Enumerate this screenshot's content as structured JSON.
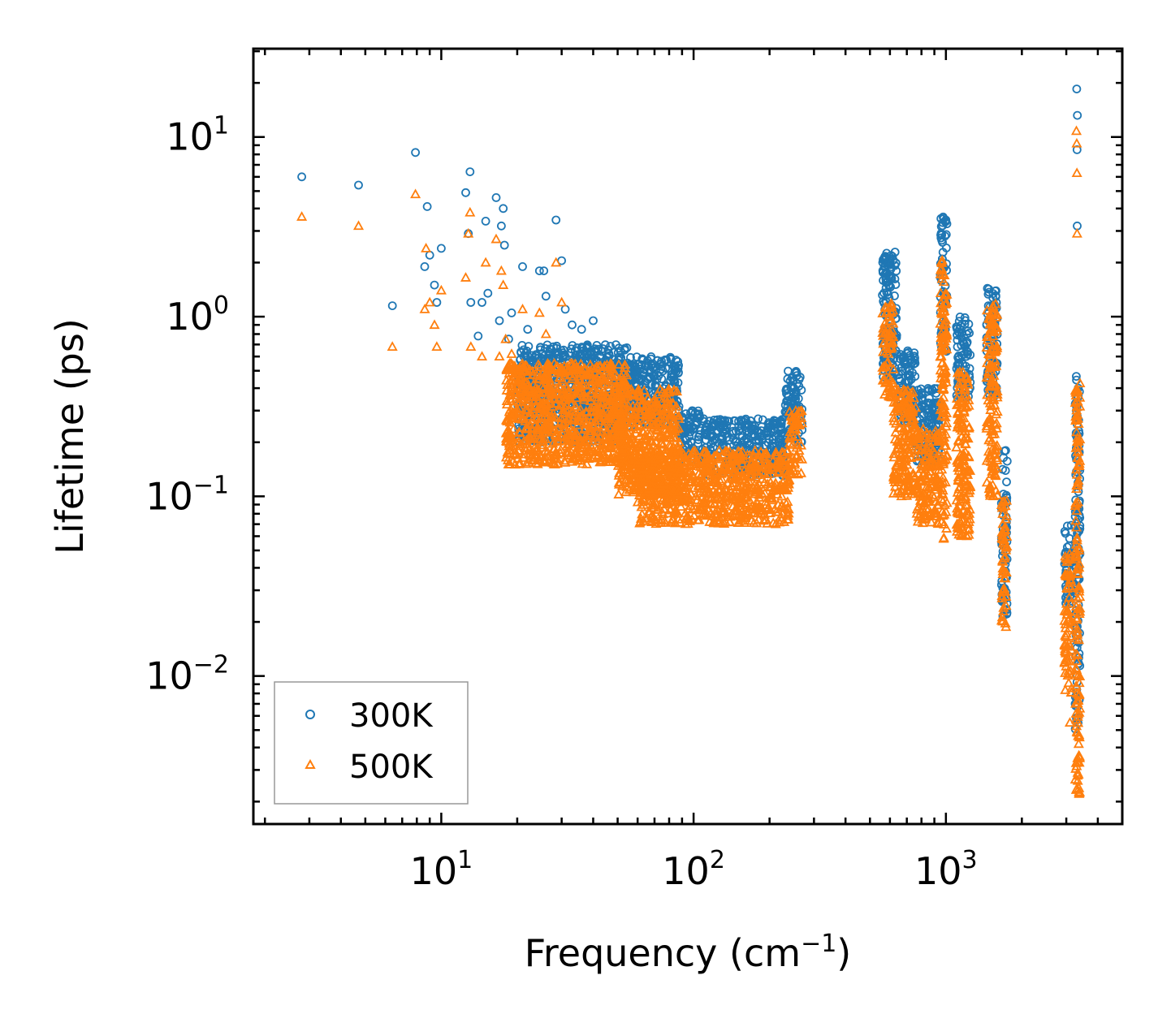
{
  "chart_data": {
    "type": "scatter",
    "title": "",
    "xlabel": "Frequency (cm",
    "xlabel_sup": "−1",
    "xlabel_suffix": ")",
    "ylabel": "Lifetime (ps)",
    "xscale": "log",
    "yscale": "log",
    "xlim": [
      1.8,
      5000
    ],
    "ylim": [
      0.0015,
      31
    ],
    "x_ticks": [
      {
        "value": 10,
        "base": "10",
        "exp": "1"
      },
      {
        "value": 100,
        "base": "10",
        "exp": "2"
      },
      {
        "value": 1000,
        "base": "10",
        "exp": "3"
      }
    ],
    "y_ticks": [
      {
        "value": 0.01,
        "base": "10",
        "exp": "−2"
      },
      {
        "value": 0.1,
        "base": "10",
        "exp": "−1"
      },
      {
        "value": 1,
        "base": "10",
        "exp": "0"
      },
      {
        "value": 10,
        "base": "10",
        "exp": "1"
      }
    ],
    "legend_position": "bottom-left",
    "series": [
      {
        "name": "300K",
        "color": "#1f77b4",
        "marker": "circle",
        "explicit_points": [
          [
            2.8,
            6.0
          ],
          [
            4.7,
            5.4
          ],
          [
            6.4,
            1.15
          ],
          [
            7.9,
            8.2
          ],
          [
            8.6,
            1.9
          ],
          [
            8.8,
            4.1
          ],
          [
            9.0,
            2.2
          ],
          [
            9.4,
            1.5
          ],
          [
            9.6,
            1.2
          ],
          [
            10.0,
            2.4
          ],
          [
            12.5,
            4.9
          ],
          [
            12.8,
            2.9
          ],
          [
            13.0,
            6.4
          ],
          [
            13.1,
            1.2
          ],
          [
            14.0,
            0.78
          ],
          [
            14.5,
            1.2
          ],
          [
            15.0,
            3.4
          ],
          [
            15.3,
            1.35
          ],
          [
            16.5,
            4.6
          ],
          [
            17.0,
            0.95
          ],
          [
            17.3,
            3.2
          ],
          [
            17.6,
            4.0
          ],
          [
            17.8,
            2.5
          ],
          [
            18.5,
            0.75
          ],
          [
            19.0,
            1.05
          ],
          [
            21.0,
            1.9
          ],
          [
            22.0,
            0.85
          ],
          [
            24.5,
            1.8
          ],
          [
            25.5,
            1.8
          ],
          [
            26.0,
            1.3
          ],
          [
            28.5,
            3.45
          ],
          [
            30.0,
            2.05
          ],
          [
            31.0,
            1.1
          ],
          [
            33.0,
            0.9
          ],
          [
            36.0,
            0.85
          ],
          [
            40.0,
            0.95
          ],
          [
            3300,
            18.5
          ],
          [
            3320,
            13.2
          ],
          [
            3310,
            8.5
          ],
          [
            3315,
            3.2
          ]
        ],
        "bands": [
          {
            "x": [
              20,
              55
            ],
            "y": [
              0.2,
              0.7
            ]
          },
          {
            "x": [
              55,
              88
            ],
            "y": [
              0.25,
              0.6
            ]
          },
          {
            "x": [
              88,
              110
            ],
            "y": [
              0.16,
              0.3
            ]
          },
          {
            "x": [
              110,
              230
            ],
            "y": [
              0.13,
              0.27
            ]
          },
          {
            "x": [
              230,
              270
            ],
            "y": [
              0.2,
              0.5
            ]
          },
          {
            "x": [
              560,
              640
            ],
            "y": [
              0.45,
              2.3
            ]
          },
          {
            "x": [
              650,
              760
            ],
            "y": [
              0.25,
              0.65
            ]
          },
          {
            "x": [
              760,
              940
            ],
            "y": [
              0.15,
              0.4
            ]
          },
          {
            "x": [
              950,
              1010
            ],
            "y": [
              0.6,
              3.7
            ]
          },
          {
            "x": [
              1100,
              1250
            ],
            "y": [
              0.35,
              1.0
            ]
          },
          {
            "x": [
              1450,
              1600
            ],
            "y": [
              0.35,
              1.5
            ]
          },
          {
            "x": [
              1660,
              1750
            ],
            "y": [
              0.02,
              0.18
            ]
          },
          {
            "x": [
              2950,
              3150
            ],
            "y": [
              0.025,
              0.07
            ]
          },
          {
            "x": [
              3250,
              3400
            ],
            "y": [
              0.005,
              0.5
            ]
          }
        ]
      },
      {
        "name": "500K",
        "color": "#ff7f0e",
        "marker": "triangle",
        "explicit_points": [
          [
            2.8,
            3.6
          ],
          [
            4.7,
            3.2
          ],
          [
            6.4,
            0.68
          ],
          [
            7.9,
            4.8
          ],
          [
            8.6,
            1.1
          ],
          [
            8.7,
            2.4
          ],
          [
            9.0,
            1.2
          ],
          [
            9.4,
            0.9
          ],
          [
            9.6,
            0.68
          ],
          [
            10.0,
            1.4
          ],
          [
            12.5,
            1.65
          ],
          [
            12.8,
            2.9
          ],
          [
            13.0,
            3.8
          ],
          [
            13.1,
            0.68
          ],
          [
            14.5,
            0.6
          ],
          [
            15.0,
            2.0
          ],
          [
            16.5,
            2.7
          ],
          [
            17.0,
            0.6
          ],
          [
            17.3,
            1.8
          ],
          [
            17.6,
            1.5
          ],
          [
            18.0,
            0.75
          ],
          [
            19.0,
            0.62
          ],
          [
            21.0,
            1.1
          ],
          [
            24.5,
            1.05
          ],
          [
            26.0,
            0.8
          ],
          [
            28.5,
            2.0
          ],
          [
            30.0,
            1.2
          ],
          [
            3290,
            10.8
          ],
          [
            3300,
            9.2
          ],
          [
            3305,
            6.3
          ],
          [
            3310,
            2.9
          ],
          [
            3100,
            0.0055
          ]
        ],
        "bands": [
          {
            "x": [
              18,
              55
            ],
            "y": [
              0.15,
              0.55
            ]
          },
          {
            "x": [
              50,
              88
            ],
            "y": [
              0.1,
              0.4
            ]
          },
          {
            "x": [
              60,
              110
            ],
            "y": [
              0.07,
              0.18
            ]
          },
          {
            "x": [
              110,
              240
            ],
            "y": [
              0.07,
              0.18
            ]
          },
          {
            "x": [
              240,
              270
            ],
            "y": [
              0.13,
              0.3
            ]
          },
          {
            "x": [
              560,
              620
            ],
            "y": [
              0.35,
              1.2
            ]
          },
          {
            "x": [
              620,
              760
            ],
            "y": [
              0.1,
              0.4
            ]
          },
          {
            "x": [
              760,
              940
            ],
            "y": [
              0.07,
              0.25
            ]
          },
          {
            "x": [
              950,
              1010
            ],
            "y": [
              0.05,
              2.2
            ]
          },
          {
            "x": [
              1100,
              1250
            ],
            "y": [
              0.06,
              0.5
            ]
          },
          {
            "x": [
              1450,
              1600
            ],
            "y": [
              0.1,
              1.2
            ]
          },
          {
            "x": [
              1660,
              1750
            ],
            "y": [
              0.018,
              0.1
            ]
          },
          {
            "x": [
              2950,
              3150
            ],
            "y": [
              0.008,
              0.05
            ]
          },
          {
            "x": [
              3250,
              3400
            ],
            "y": [
              0.0022,
              0.45
            ]
          }
        ]
      }
    ]
  }
}
